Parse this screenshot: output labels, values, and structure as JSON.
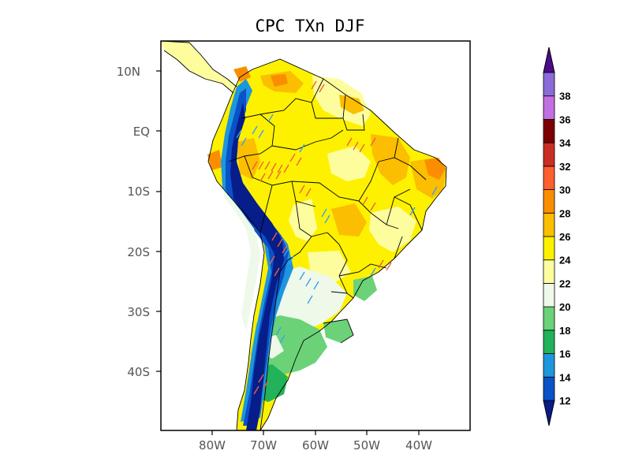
{
  "map": {
    "title": "CPC TXn DJF",
    "lat_labels": [
      "10N",
      "EQ",
      "10S",
      "20S",
      "30S",
      "40S"
    ],
    "lon_labels": [
      "80W",
      "70W",
      "60W",
      "50W",
      "40W"
    ],
    "lon_range": [
      -90,
      -30
    ],
    "lat_range": [
      -50,
      15
    ]
  },
  "colorbar": {
    "levels": [
      "12",
      "14",
      "16",
      "18",
      "20",
      "22",
      "24",
      "26",
      "28",
      "30",
      "32",
      "34",
      "36",
      "38"
    ],
    "colors": [
      "#0a52c7",
      "#1e96dd",
      "#21b25a",
      "#6bd277",
      "#eef9ea",
      "#fdfd9e",
      "#fdf100",
      "#fbbe00",
      "#fa8d00",
      "#fd5f2e",
      "#c82e24",
      "#7d0000",
      "#c26fe3",
      "#8b6bd9"
    ],
    "low_color": "#061d8a",
    "high_color": "#4b0b8a"
  },
  "colors": {
    "deep_blue": "#061d8a",
    "blue": "#0a52c7",
    "light_blue": "#1e96dd",
    "green": "#21b25a",
    "light_green": "#6bd277",
    "pale": "#eef9ea",
    "light_yellow": "#fdfd9e",
    "yellow": "#fdf100",
    "gold": "#fbbe00",
    "orange": "#fa8d00",
    "hatch_red": "#f06040",
    "hatch_blue": "#3a9ff0"
  }
}
